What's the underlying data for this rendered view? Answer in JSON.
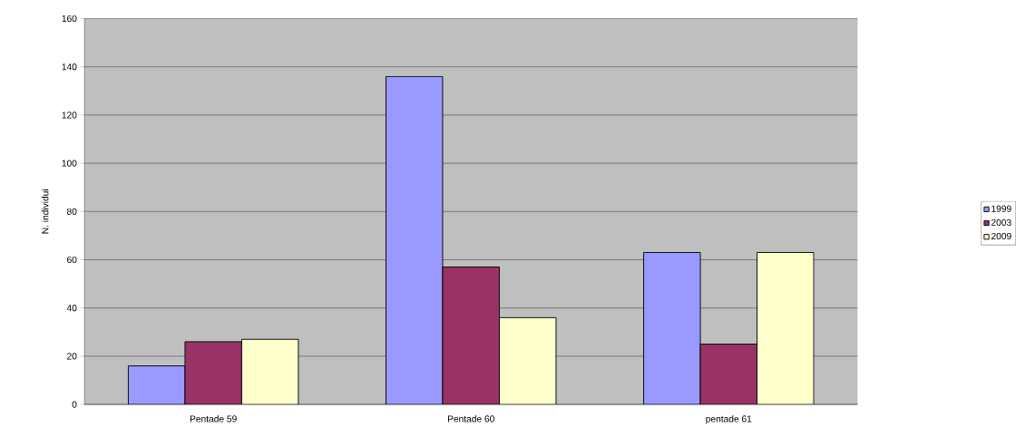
{
  "chart_data": {
    "type": "bar",
    "ylabel": "N. individui",
    "categories": [
      "Pentade 59",
      "Pentade 60",
      "pentade 61"
    ],
    "series": [
      {
        "name": "1999",
        "color": "#9999ff",
        "values": [
          16,
          136,
          63
        ]
      },
      {
        "name": "2003",
        "color": "#993366",
        "values": [
          26,
          57,
          25
        ]
      },
      {
        "name": "2009",
        "color": "#ffffcc",
        "values": [
          27,
          36,
          63
        ]
      }
    ],
    "ylim": [
      0,
      160
    ],
    "yticks": [
      0,
      20,
      40,
      60,
      80,
      100,
      120,
      140,
      160
    ],
    "grid": "y",
    "legend": "right"
  }
}
